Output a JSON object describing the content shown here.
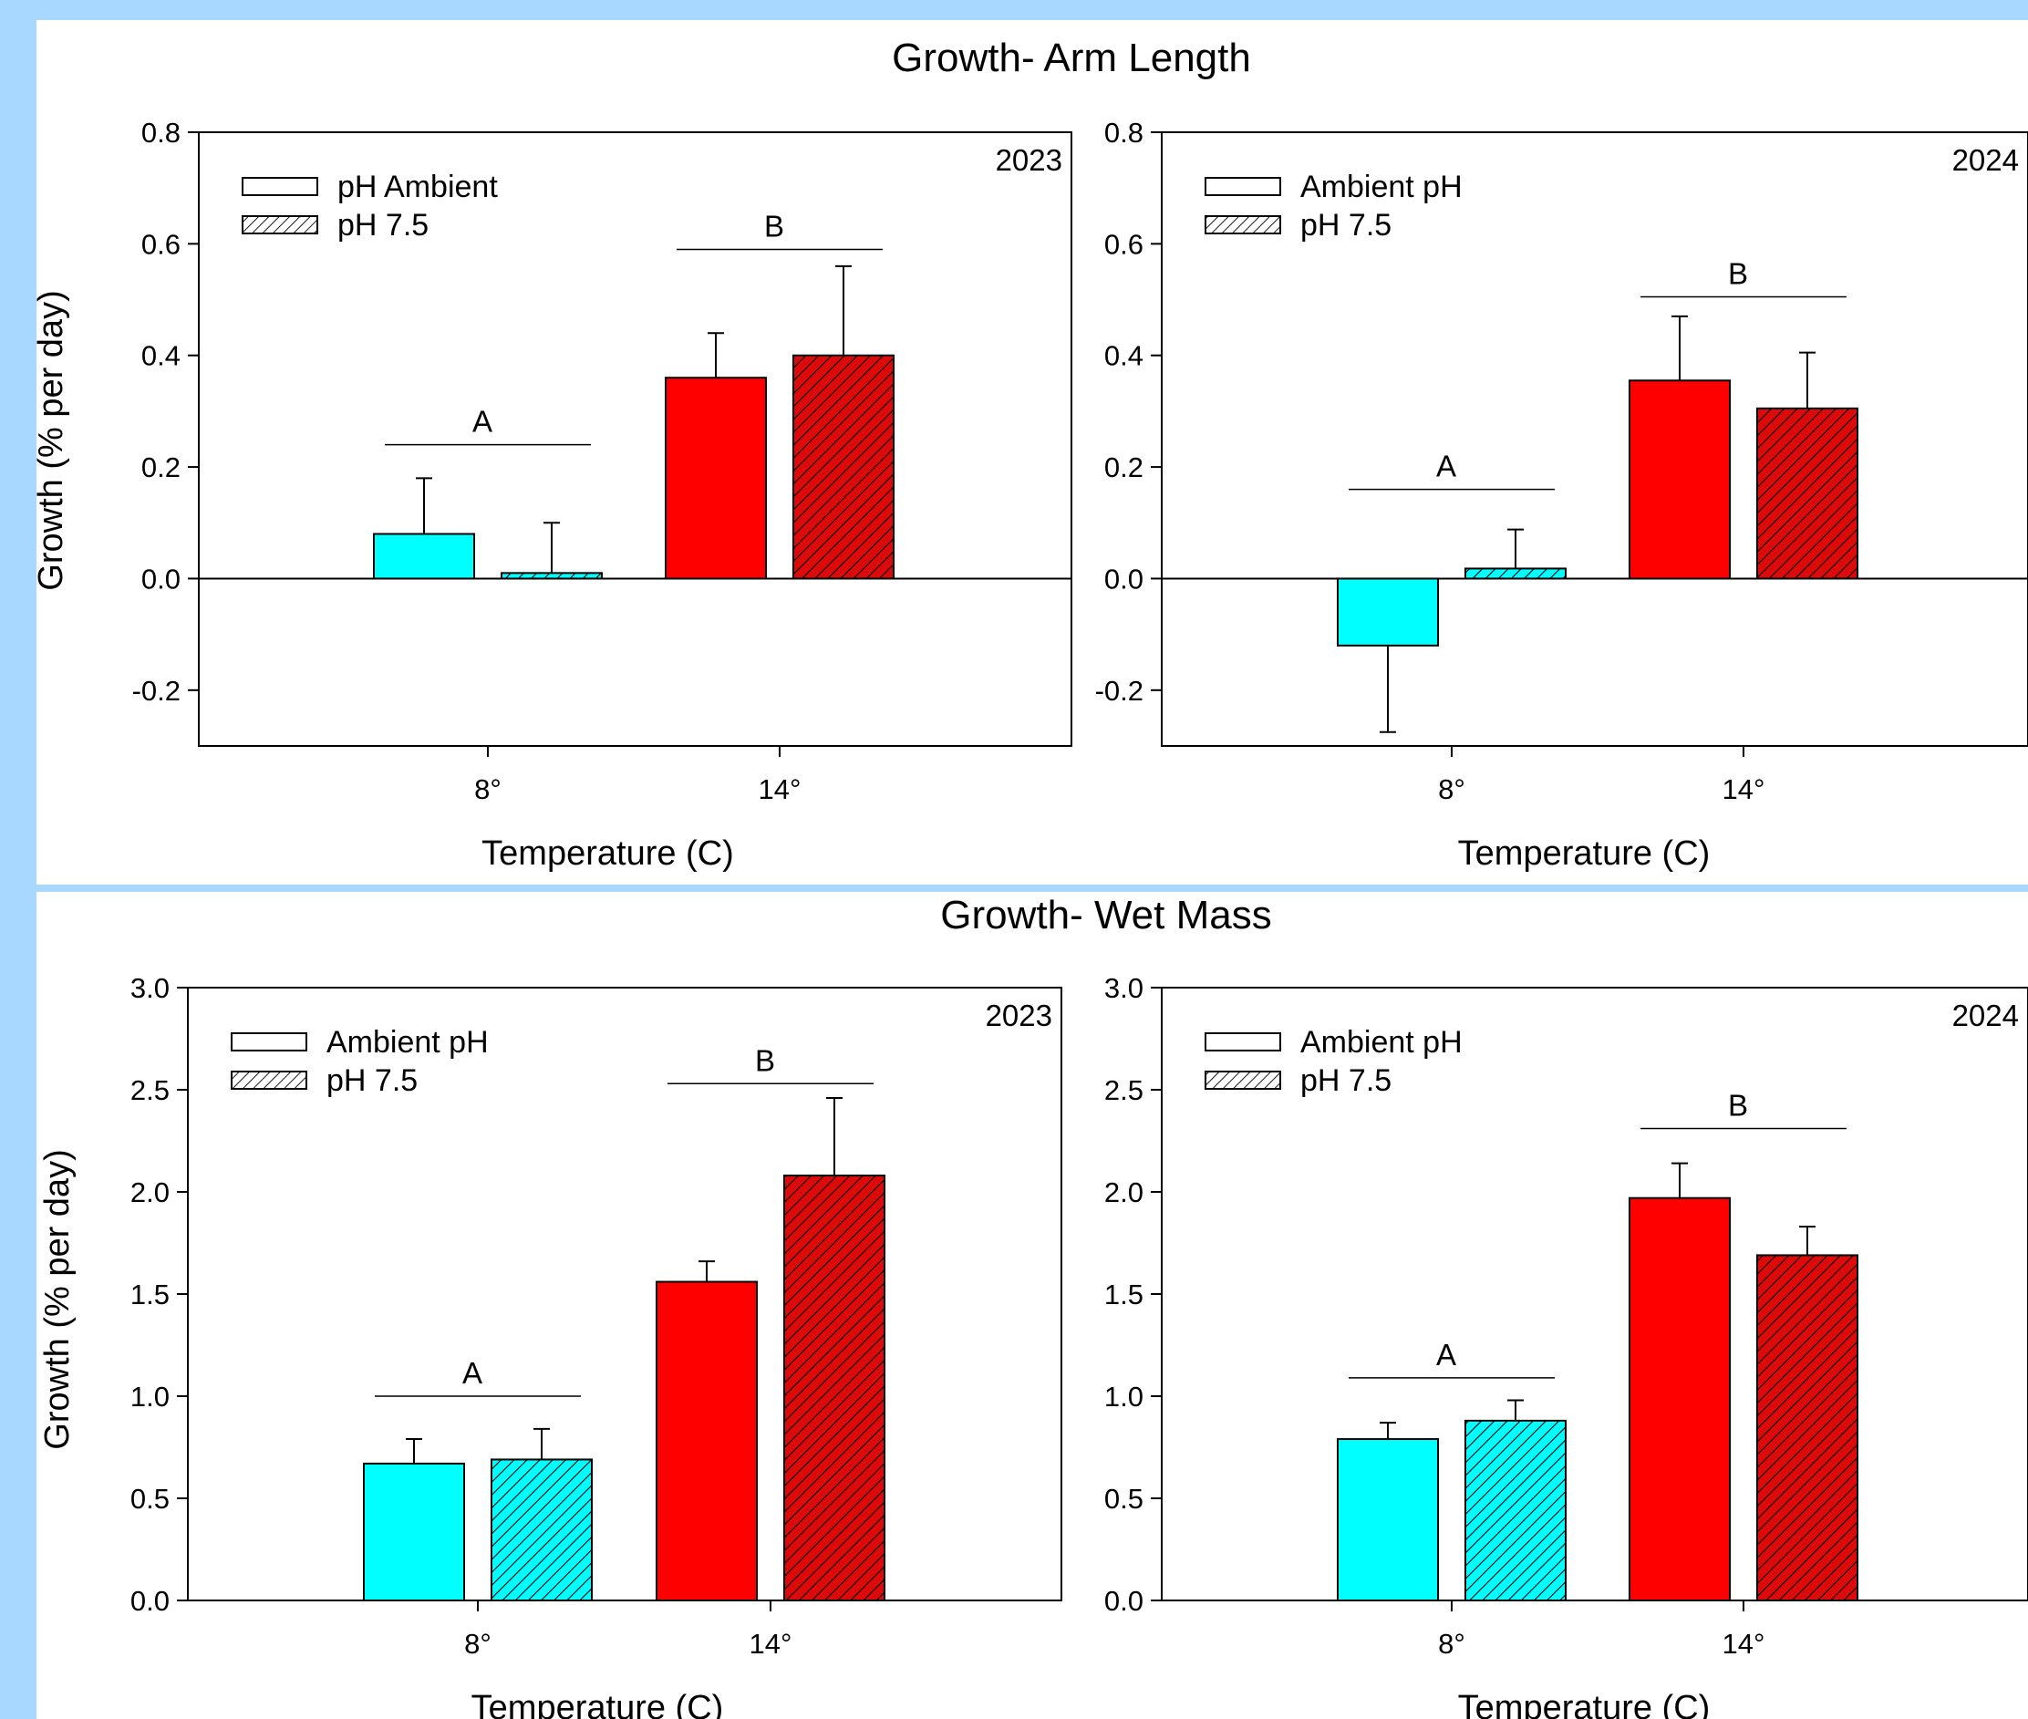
{
  "colors": {
    "background": "#a8d8ff",
    "panel": "#ffffff",
    "cyan": "#00ffff",
    "red": "#ff0000",
    "red_hatched": "#dd0a0a"
  },
  "sections": [
    {
      "title": "Growth- Arm Length"
    },
    {
      "title": "Growth- Wet Mass"
    }
  ],
  "chart_data": [
    {
      "type": "bar",
      "section": "Growth- Arm Length",
      "panel_label": "2023",
      "xlabel": "Temperature (C)",
      "ylabel": "Growth (% per day)",
      "ylim": [
        -0.3,
        0.8
      ],
      "yticks": [
        -0.2,
        0.0,
        0.2,
        0.4,
        0.6,
        0.8
      ],
      "ytick_labels": [
        "-0.2",
        "0.0",
        "0.2",
        "0.4",
        "0.6",
        "0.8"
      ],
      "categories": [
        "8°",
        "14°"
      ],
      "legend": {
        "position": "top-left",
        "entries": [
          "pH Ambient",
          "pH 7.5"
        ]
      },
      "series": [
        {
          "name": "pH Ambient",
          "pattern": "solid",
          "values": [
            0.08,
            0.36
          ],
          "errors": [
            0.1,
            0.08
          ],
          "colors": [
            "#00ffff",
            "#ff0000"
          ]
        },
        {
          "name": "pH 7.5",
          "pattern": "hatched",
          "values": [
            0.01,
            0.4
          ],
          "errors": [
            0.09,
            0.16
          ],
          "colors": [
            "#00ffff",
            "#dd0a0a"
          ]
        }
      ],
      "groups": [
        {
          "label": "A",
          "y": 0.24
        },
        {
          "label": "B",
          "y": 0.59
        }
      ]
    },
    {
      "type": "bar",
      "section": "Growth- Arm Length",
      "panel_label": "2024",
      "xlabel": "Temperature (C)",
      "ylabel": "",
      "ylim": [
        -0.3,
        0.8
      ],
      "yticks": [
        -0.2,
        0.0,
        0.2,
        0.4,
        0.6,
        0.8
      ],
      "ytick_labels": [
        "-0.2",
        "0.0",
        "0.2",
        "0.4",
        "0.6",
        "0.8"
      ],
      "categories": [
        "8°",
        "14°"
      ],
      "legend": {
        "position": "top-left",
        "entries": [
          "Ambient pH",
          "pH 7.5"
        ]
      },
      "series": [
        {
          "name": "Ambient pH",
          "pattern": "solid",
          "values": [
            -0.12,
            0.355
          ],
          "errors": [
            0.155,
            0.115
          ],
          "colors": [
            "#00ffff",
            "#ff0000"
          ]
        },
        {
          "name": "pH 7.5",
          "pattern": "hatched",
          "values": [
            0.018,
            0.305
          ],
          "errors": [
            0.07,
            0.1
          ],
          "colors": [
            "#00ffff",
            "#dd0a0a"
          ]
        }
      ],
      "groups": [
        {
          "label": "A",
          "y": 0.16
        },
        {
          "label": "B",
          "y": 0.505
        }
      ]
    },
    {
      "type": "bar",
      "section": "Growth- Wet Mass",
      "panel_label": "2023",
      "xlabel": "Temperature (C)",
      "ylabel": "Growth (% per day)",
      "ylim": [
        0.0,
        3.0
      ],
      "yticks": [
        0.0,
        0.5,
        1.0,
        1.5,
        2.0,
        2.5,
        3.0
      ],
      "ytick_labels": [
        "0.0",
        "0.5",
        "1.0",
        "1.5",
        "2.0",
        "2.5",
        "3.0"
      ],
      "categories": [
        "8°",
        "14°"
      ],
      "legend": {
        "position": "top-left",
        "entries": [
          "Ambient pH",
          "pH 7.5"
        ]
      },
      "series": [
        {
          "name": "Ambient pH",
          "pattern": "solid",
          "values": [
            0.67,
            1.56
          ],
          "errors": [
            0.12,
            0.1
          ],
          "colors": [
            "#00ffff",
            "#ff0000"
          ]
        },
        {
          "name": "pH 7.5",
          "pattern": "hatched",
          "values": [
            0.69,
            2.08
          ],
          "errors": [
            0.15,
            0.38
          ],
          "colors": [
            "#00ffff",
            "#dd0a0a"
          ]
        }
      ],
      "groups": [
        {
          "label": "A",
          "y": 1.0
        },
        {
          "label": "B",
          "y": 2.53
        }
      ]
    },
    {
      "type": "bar",
      "section": "Growth- Wet Mass",
      "panel_label": "2024",
      "xlabel": "Temperature (C)",
      "ylabel": "",
      "ylim": [
        0.0,
        3.0
      ],
      "yticks": [
        0.0,
        0.5,
        1.0,
        1.5,
        2.0,
        2.5,
        3.0
      ],
      "ytick_labels": [
        "0.0",
        "0.5",
        "1.0",
        "1.5",
        "2.0",
        "2.5",
        "3.0"
      ],
      "categories": [
        "8°",
        "14°"
      ],
      "legend": {
        "position": "top-left",
        "entries": [
          "Ambient pH",
          "pH 7.5"
        ]
      },
      "series": [
        {
          "name": "Ambient pH",
          "pattern": "solid",
          "values": [
            0.79,
            1.97
          ],
          "errors": [
            0.08,
            0.17
          ],
          "colors": [
            "#00ffff",
            "#ff0000"
          ]
        },
        {
          "name": "pH 7.5",
          "pattern": "hatched",
          "values": [
            0.88,
            1.69
          ],
          "errors": [
            0.1,
            0.14
          ],
          "colors": [
            "#00ffff",
            "#dd0a0a"
          ]
        }
      ],
      "groups": [
        {
          "label": "A",
          "y": 1.09
        },
        {
          "label": "B",
          "y": 2.31
        }
      ]
    }
  ]
}
